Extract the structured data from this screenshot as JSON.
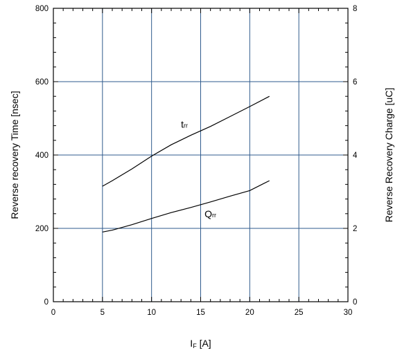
{
  "chart_data": {
    "type": "line",
    "x_axis": {
      "label_main": "I",
      "label_sub": "F",
      "label_unit": " [A]",
      "range": [
        0,
        30
      ],
      "ticks": [
        0,
        5,
        10,
        15,
        20,
        25,
        30
      ],
      "minor_step": 1
    },
    "y_axis_left": {
      "label": "Reverse recovery Time [nsec]",
      "range": [
        0,
        800
      ],
      "ticks": [
        0,
        200,
        400,
        600,
        800
      ],
      "minor_step": 40
    },
    "y_axis_right": {
      "label": "Reverse Recovery Charge [uC]",
      "range": [
        0,
        8
      ],
      "ticks": [
        0,
        2,
        4,
        6,
        8
      ],
      "minor_step": 0.4
    },
    "grid": true,
    "grid_color": "#2e5a8c",
    "series": [
      {
        "name_main": "t",
        "name_sub": "rr",
        "axis": "left",
        "label_at": [
          13,
          475
        ],
        "x": [
          5,
          6,
          8,
          10,
          12,
          14,
          16,
          18,
          20,
          22
        ],
        "y": [
          315,
          330,
          362,
          397,
          428,
          454,
          478,
          505,
          532,
          560
        ]
      },
      {
        "name_main": "Q",
        "name_sub": "rr",
        "axis": "right",
        "label_at": [
          15.4,
          2.3
        ],
        "x": [
          5,
          6,
          8,
          10,
          12,
          14,
          16,
          18,
          20,
          22
        ],
        "y": [
          1.9,
          1.95,
          2.1,
          2.27,
          2.43,
          2.57,
          2.72,
          2.88,
          3.03,
          3.3
        ]
      }
    ]
  }
}
